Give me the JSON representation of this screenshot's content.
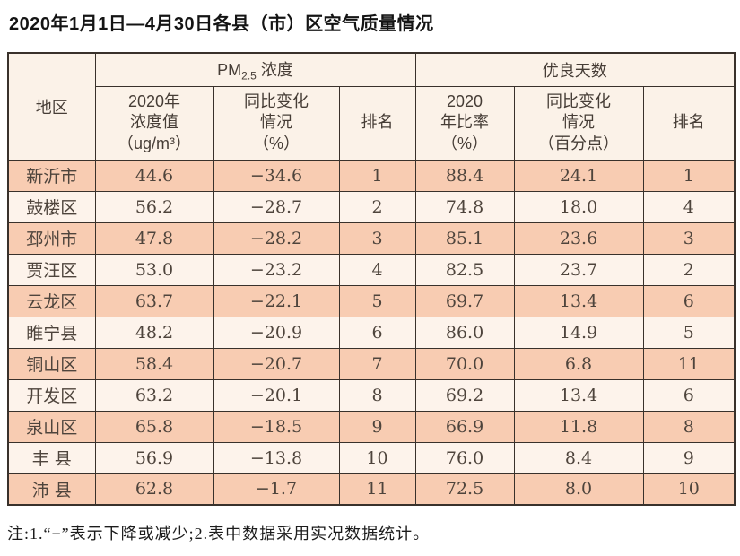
{
  "page": {
    "title": "2020年1月1日—4月30日各县（市）区空气质量情况",
    "note": "注:1.“−”表示下降或减少;2.表中数据采用实况数据统计。"
  },
  "colors": {
    "row_stripe_odd": "#f8ccb2",
    "row_stripe_even": "#fdf3eb",
    "header_bg": "#fbf2e8",
    "border": "#39312b"
  },
  "table": {
    "region_header": "地区",
    "pm_group": {
      "prefix": "PM",
      "sub": "2.5",
      "suffix": " 浓度"
    },
    "good_group": "优良天数",
    "subheaders": {
      "pm_value": "2020年\n浓度值\n（ug/m³）",
      "pm_change": "同比变化\n情况\n（%）",
      "pm_rank": "排名",
      "good_rate": "2020\n年比率\n（%）",
      "good_change": "同比变化\n情况\n（百分点）",
      "good_rank": "排名"
    },
    "rows": [
      {
        "region": "新沂市",
        "pm_value": "44.6",
        "pm_change": "−34.6",
        "pm_rank": "1",
        "good_rate": "88.4",
        "good_change": "24.1",
        "good_rank": "1"
      },
      {
        "region": "鼓楼区",
        "pm_value": "56.2",
        "pm_change": "−28.7",
        "pm_rank": "2",
        "good_rate": "74.8",
        "good_change": "18.0",
        "good_rank": "4"
      },
      {
        "region": "邳州市",
        "pm_value": "47.8",
        "pm_change": "−28.2",
        "pm_rank": "3",
        "good_rate": "85.1",
        "good_change": "23.6",
        "good_rank": "3"
      },
      {
        "region": "贾汪区",
        "pm_value": "53.0",
        "pm_change": "−23.2",
        "pm_rank": "4",
        "good_rate": "82.5",
        "good_change": "23.7",
        "good_rank": "2"
      },
      {
        "region": "云龙区",
        "pm_value": "63.7",
        "pm_change": "−22.1",
        "pm_rank": "5",
        "good_rate": "69.7",
        "good_change": "13.4",
        "good_rank": "6"
      },
      {
        "region": "睢宁县",
        "pm_value": "48.2",
        "pm_change": "−20.9",
        "pm_rank": "6",
        "good_rate": "86.0",
        "good_change": "14.9",
        "good_rank": "5"
      },
      {
        "region": "铜山区",
        "pm_value": "58.4",
        "pm_change": "−20.7",
        "pm_rank": "7",
        "good_rate": "70.0",
        "good_change": "6.8",
        "good_rank": "11"
      },
      {
        "region": "开发区",
        "pm_value": "63.2",
        "pm_change": "−20.1",
        "pm_rank": "8",
        "good_rate": "69.2",
        "good_change": "13.4",
        "good_rank": "6"
      },
      {
        "region": "泉山区",
        "pm_value": "65.8",
        "pm_change": "−18.5",
        "pm_rank": "9",
        "good_rate": "66.9",
        "good_change": "11.8",
        "good_rank": "8"
      },
      {
        "region": "丰 县",
        "pm_value": "56.9",
        "pm_change": "−13.8",
        "pm_rank": "10",
        "good_rate": "76.0",
        "good_change": "8.4",
        "good_rank": "9"
      },
      {
        "region": "沛 县",
        "pm_value": "62.8",
        "pm_change": "−1.7",
        "pm_rank": "11",
        "good_rate": "72.5",
        "good_change": "8.0",
        "good_rank": "10"
      }
    ]
  }
}
